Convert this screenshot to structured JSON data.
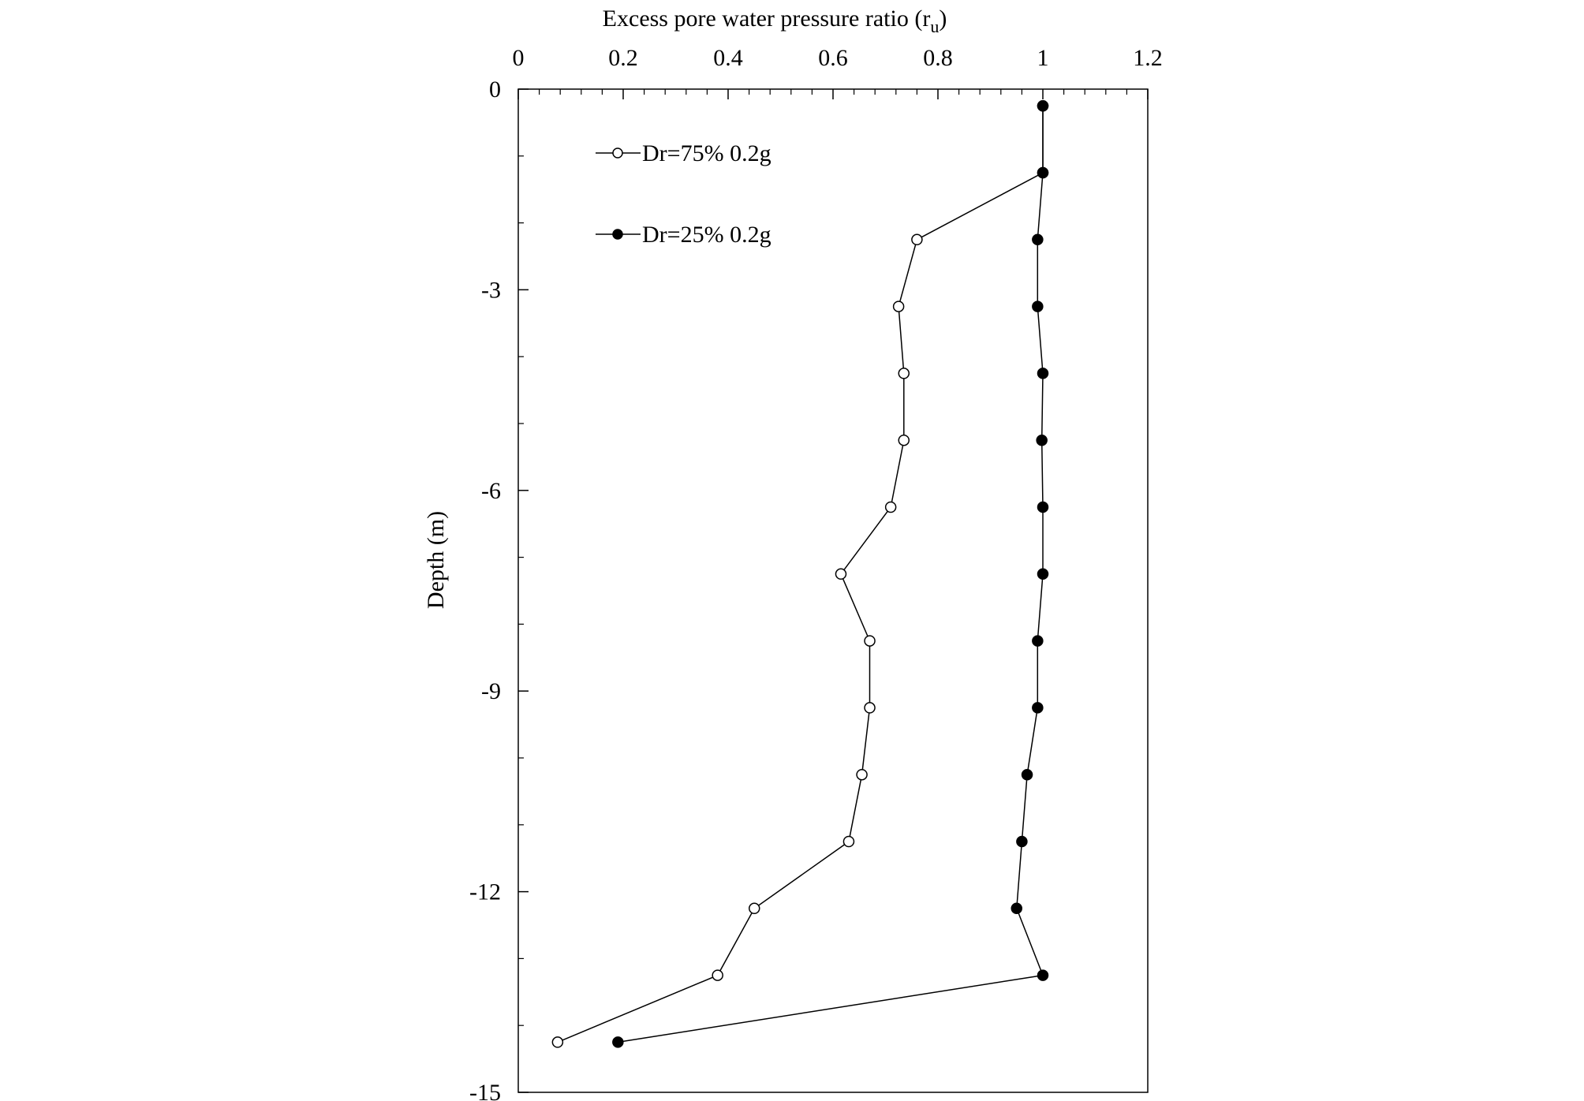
{
  "chart_data": {
    "type": "line",
    "title": "",
    "xlabel": "Excess pore water pressure ratio (r",
    "xlabel_subscript": "u",
    "xlabel_suffix": ")",
    "ylabel": "Depth (m)",
    "xlim": [
      0,
      1.2
    ],
    "ylim": [
      -15,
      0
    ],
    "x_axis_position": "top",
    "x_ticks": [
      0,
      0.2,
      0.4,
      0.6,
      0.8,
      1,
      1.2
    ],
    "x_tick_labels": [
      "0",
      "0.2",
      "0.4",
      "0.6",
      "0.8",
      "1",
      "1.2"
    ],
    "y_ticks": [
      0,
      -3,
      -6,
      -9,
      -12,
      -15
    ],
    "y_tick_labels": [
      "0",
      "-3",
      "-6",
      "-9",
      "-12",
      "-15"
    ],
    "grid": false,
    "legend_position": "top-left",
    "series": [
      {
        "name": "Dr=75% 0.2g",
        "marker": "open-circle",
        "color": "#000000",
        "points": [
          {
            "x": 1.0,
            "y": -0.25
          },
          {
            "x": 1.0,
            "y": -1.25
          },
          {
            "x": 0.76,
            "y": -2.25
          },
          {
            "x": 0.725,
            "y": -3.25
          },
          {
            "x": 0.735,
            "y": -4.25
          },
          {
            "x": 0.735,
            "y": -5.25
          },
          {
            "x": 0.71,
            "y": -6.25
          },
          {
            "x": 0.615,
            "y": -7.25
          },
          {
            "x": 0.67,
            "y": -8.25
          },
          {
            "x": 0.67,
            "y": -9.25
          },
          {
            "x": 0.655,
            "y": -10.25
          },
          {
            "x": 0.63,
            "y": -11.25
          },
          {
            "x": 0.45,
            "y": -12.25
          },
          {
            "x": 0.38,
            "y": -13.25
          },
          {
            "x": 0.075,
            "y": -14.25
          }
        ]
      },
      {
        "name": "Dr=25% 0.2g",
        "marker": "filled-circle",
        "color": "#000000",
        "points": [
          {
            "x": 1.0,
            "y": -0.25
          },
          {
            "x": 1.0,
            "y": -1.25
          },
          {
            "x": 0.99,
            "y": -2.25
          },
          {
            "x": 0.99,
            "y": -3.25
          },
          {
            "x": 1.0,
            "y": -4.25
          },
          {
            "x": 0.998,
            "y": -5.25
          },
          {
            "x": 1.0,
            "y": -6.25
          },
          {
            "x": 1.0,
            "y": -7.25
          },
          {
            "x": 0.99,
            "y": -8.25
          },
          {
            "x": 0.99,
            "y": -9.25
          },
          {
            "x": 0.97,
            "y": -10.25
          },
          {
            "x": 0.96,
            "y": -11.25
          },
          {
            "x": 0.95,
            "y": -12.25
          },
          {
            "x": 1.0,
            "y": -13.25
          },
          {
            "x": 0.19,
            "y": -14.25
          }
        ]
      }
    ]
  }
}
